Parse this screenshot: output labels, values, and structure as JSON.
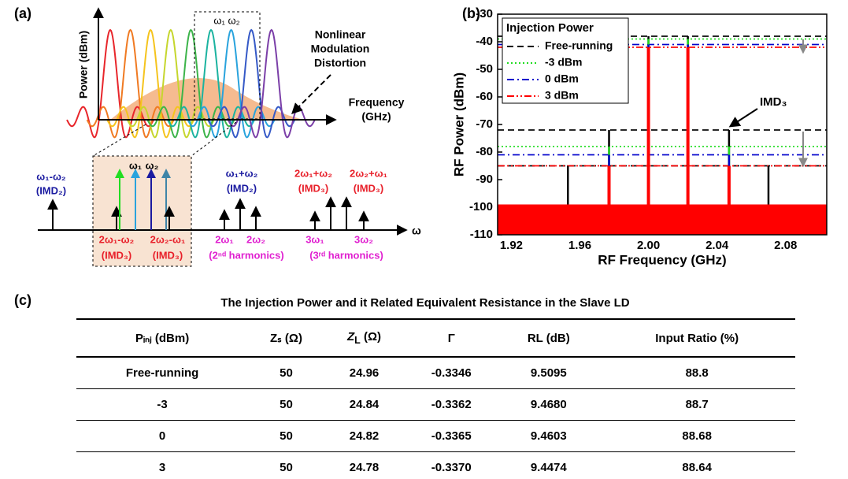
{
  "panel_a": {
    "label": "(a)",
    "y_axis": "Power (dBm)",
    "x_axis": [
      "Frequency",
      "(GHz)"
    ],
    "annotation": [
      "Nonlinear",
      "Modulation",
      "Distortion"
    ],
    "box_label": "ω₁ ω₂",
    "spectrum_axis": "ω",
    "labels": [
      [
        "ω₁-ω₂",
        "(IMD₂)"
      ],
      [
        "ω₁",
        "ω₂"
      ],
      [
        "ω₁+ω₂",
        "(IMD₂)"
      ],
      [
        "2ω₁+ω₂",
        "(IMD₃)"
      ],
      [
        "2ω₂+ω₁",
        "(IMD₃)"
      ],
      [
        "2ω₁-ω₂",
        "(IMD₃)"
      ],
      [
        "2ω₂-ω₁",
        "(IMD₃)"
      ],
      [
        "2ω₁",
        "2ω₂",
        "(2ⁿᵈ harmonics)"
      ],
      [
        "3ω₁",
        "3ω₂",
        "(3ʳᵈ harmonics)"
      ]
    ]
  },
  "panel_b_label": "(b)",
  "chart_data": {
    "type": "line",
    "xlabel": "RF Frequency (GHz)",
    "ylabel": "RF Power (dBm)",
    "annotation": "IMD₃",
    "legend_title": "Injection Power",
    "legend": "upper left",
    "x": [
      1.953,
      1.977,
      2.0,
      2.023,
      2.047,
      2.07
    ],
    "series": [
      {
        "name": "Free-running",
        "color": "#000000",
        "dash": "8,5",
        "values": [
          -85,
          -72,
          -38,
          -38,
          -72,
          -85
        ]
      },
      {
        "name": "-3 dBm",
        "color": "#22dd22",
        "dash": "2,3",
        "values": [
          null,
          -78,
          -39,
          -39,
          -78,
          null
        ]
      },
      {
        "name": "0 dBm",
        "color": "#0000cc",
        "dash": "9,4,2,4",
        "values": [
          null,
          -81,
          -41,
          -41,
          -81,
          null
        ]
      },
      {
        "name": "3 dBm",
        "color": "#ff0000",
        "dash": "9,3,2,3,2,3",
        "values": [
          null,
          -85,
          -42,
          -42,
          -85,
          null
        ]
      }
    ],
    "noise_floor": -99,
    "xlim": [
      1.912,
      2.104
    ],
    "xticks": [
      1.92,
      1.96,
      {
        "value": 2.0,
        "label": "2.00"
      },
      2.04,
      2.08
    ],
    "ylim": [
      -110,
      -30
    ],
    "yticks": [
      -110,
      -100,
      -90,
      -80,
      -70,
      -60,
      -50,
      -40,
      -30
    ]
  },
  "table": {
    "label": "(c)",
    "title": "The Injection Power and it Related Equivalent Resistance in the Slave LD",
    "header": [
      "Pᵢₙⱼ (dBm)",
      "Zₛ (Ω)",
      {
        "text": "Z",
        "sub": "L",
        "rest": "(Ω)"
      },
      "Γ",
      "RL (dB)",
      "Input Ratio (%)"
    ],
    "rows": [
      [
        "Free-running",
        "50",
        "24.96",
        "-0.3346",
        "9.5095",
        "88.8"
      ],
      [
        "-3",
        "50",
        "24.84",
        "-0.3362",
        "9.4680",
        "88.7"
      ],
      [
        "0",
        "50",
        "24.82",
        "-0.3365",
        "9.4603",
        "88.68"
      ],
      [
        "3",
        "50",
        "24.78",
        "-0.3370",
        "9.4474",
        "88.64"
      ]
    ]
  }
}
